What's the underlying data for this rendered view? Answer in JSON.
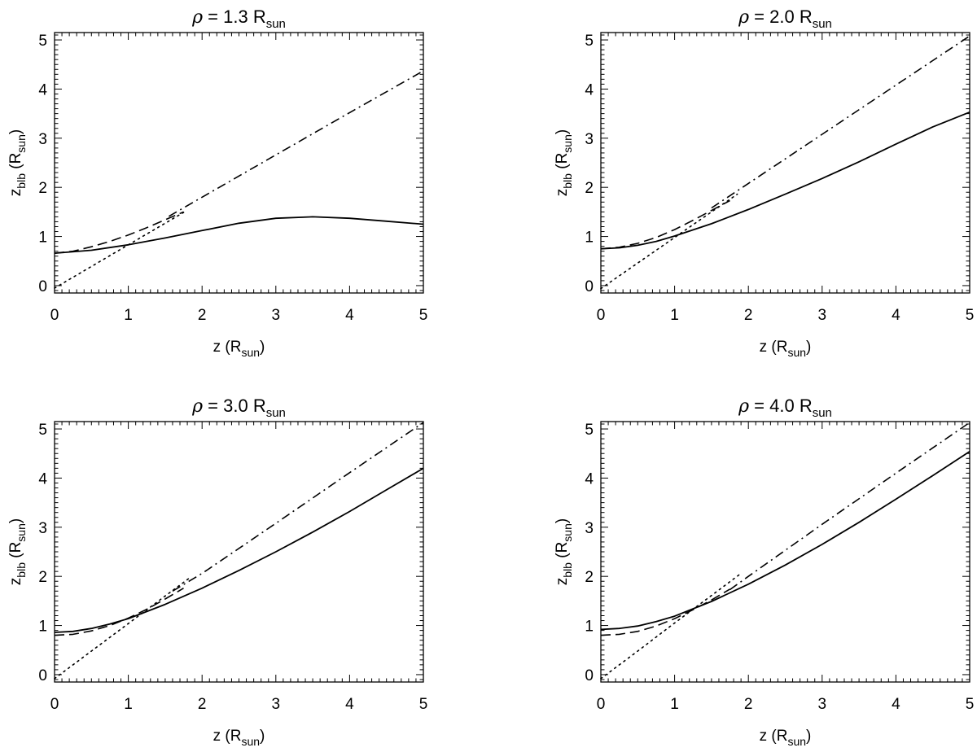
{
  "figure": {
    "background": "#ffffff",
    "ink": "#000000"
  },
  "legend": {
    "solid": "solid line",
    "dashed": "dashed line",
    "dotted": "dotted line",
    "dashdot": "dash-dot line"
  },
  "chart_data": [
    {
      "type": "line",
      "title": {
        "symbol": "ρ",
        "value": "= 1.3 R",
        "sub": "sun"
      },
      "xlabel": {
        "text": "z (R",
        "sub": "sun",
        "close": ")"
      },
      "ylabel": {
        "var": "z",
        "var_sub": "blb",
        "text": " (R",
        "sub": "sun",
        "close": ")"
      },
      "xlim": [
        0,
        5
      ],
      "ylim": [
        -0.15,
        5.15
      ],
      "xticks": [
        "0",
        "1",
        "2",
        "3",
        "4",
        "5"
      ],
      "yticks": [
        "0",
        "1",
        "2",
        "3",
        "4",
        "5"
      ],
      "grid": false,
      "series": [
        {
          "style": "solid",
          "x": [
            0,
            0.5,
            1,
            1.5,
            2,
            2.5,
            3,
            3.5,
            4,
            4.5,
            5
          ],
          "y": [
            0.66,
            0.72,
            0.83,
            0.97,
            1.12,
            1.27,
            1.37,
            1.4,
            1.37,
            1.31,
            1.25
          ]
        },
        {
          "style": "dashed",
          "x": [
            0,
            0.25,
            0.5,
            0.75,
            1,
            1.25,
            1.5,
            1.75
          ],
          "y": [
            0.66,
            0.7,
            0.79,
            0.9,
            1.03,
            1.18,
            1.34,
            1.5
          ]
        },
        {
          "style": "dotted",
          "x": [
            0,
            0.5,
            1,
            1.5,
            1.75
          ],
          "y": [
            -0.05,
            0.39,
            0.83,
            1.27,
            1.49
          ]
        },
        {
          "style": "dashdot",
          "x": [
            1.55,
            2,
            3,
            4,
            5
          ],
          "y": [
            1.41,
            1.8,
            2.66,
            3.52,
            4.37
          ]
        }
      ]
    },
    {
      "type": "line",
      "title": {
        "symbol": "ρ",
        "value": "= 2.0 R",
        "sub": "sun"
      },
      "xlabel": {
        "text": "z (R",
        "sub": "sun",
        "close": ")"
      },
      "ylabel": {
        "var": "z",
        "var_sub": "blb",
        "text": " (R",
        "sub": "sun",
        "close": ")"
      },
      "xlim": [
        0,
        5
      ],
      "ylim": [
        -0.15,
        5.15
      ],
      "xticks": [
        "0",
        "1",
        "2",
        "3",
        "4",
        "5"
      ],
      "yticks": [
        "0",
        "1",
        "2",
        "3",
        "4",
        "5"
      ],
      "grid": false,
      "series": [
        {
          "style": "solid",
          "x": [
            0,
            0.25,
            0.5,
            0.75,
            1,
            1.5,
            2,
            2.5,
            3,
            3.5,
            4,
            4.5,
            5
          ],
          "y": [
            0.75,
            0.77,
            0.82,
            0.9,
            1.01,
            1.26,
            1.55,
            1.86,
            2.18,
            2.52,
            2.88,
            3.23,
            3.53
          ]
        },
        {
          "style": "dashed",
          "x": [
            0,
            0.25,
            0.5,
            0.75,
            1,
            1.25,
            1.5,
            1.75
          ],
          "y": [
            0.75,
            0.78,
            0.86,
            0.98,
            1.14,
            1.33,
            1.53,
            1.73
          ]
        },
        {
          "style": "dotted",
          "x": [
            0,
            0.5,
            1,
            1.5,
            1.85
          ],
          "y": [
            -0.06,
            0.46,
            0.98,
            1.5,
            1.86
          ]
        },
        {
          "style": "dashdot",
          "x": [
            1.5,
            2,
            3,
            4,
            5
          ],
          "y": [
            1.58,
            2.08,
            3.08,
            4.08,
            5.08
          ]
        }
      ]
    },
    {
      "type": "line",
      "title": {
        "symbol": "ρ",
        "value": "= 3.0 R",
        "sub": "sun"
      },
      "xlabel": {
        "text": "z (R",
        "sub": "sun",
        "close": ")"
      },
      "ylabel": {
        "var": "z",
        "var_sub": "blb",
        "text": " (R",
        "sub": "sun",
        "close": ")"
      },
      "xlim": [
        0,
        5
      ],
      "ylim": [
        -0.15,
        5.15
      ],
      "xticks": [
        "0",
        "1",
        "2",
        "3",
        "4",
        "5"
      ],
      "yticks": [
        "0",
        "1",
        "2",
        "3",
        "4",
        "5"
      ],
      "grid": false,
      "series": [
        {
          "style": "solid",
          "x": [
            0,
            0.25,
            0.5,
            0.75,
            1,
            1.5,
            2,
            2.5,
            3,
            3.5,
            4,
            4.5,
            5
          ],
          "y": [
            0.86,
            0.88,
            0.94,
            1.03,
            1.14,
            1.43,
            1.76,
            2.12,
            2.5,
            2.9,
            3.32,
            3.76,
            4.2
          ]
        },
        {
          "style": "dashed",
          "x": [
            0,
            0.25,
            0.5,
            0.75,
            1,
            1.25,
            1.5,
            1.75
          ],
          "y": [
            0.8,
            0.82,
            0.89,
            1.0,
            1.15,
            1.33,
            1.54,
            1.76
          ]
        },
        {
          "style": "dotted",
          "x": [
            0,
            0.5,
            1,
            1.5,
            1.85
          ],
          "y": [
            -0.08,
            0.48,
            1.04,
            1.6,
            1.99
          ]
        },
        {
          "style": "dashdot",
          "x": [
            1.6,
            2,
            3,
            4,
            5
          ],
          "y": [
            1.7,
            2.06,
            3.08,
            4.11,
            5.13
          ]
        }
      ]
    },
    {
      "type": "line",
      "title": {
        "symbol": "ρ",
        "value": "= 4.0 R",
        "sub": "sun"
      },
      "xlabel": {
        "text": "z (R",
        "sub": "sun",
        "close": ")"
      },
      "ylabel": {
        "var": "z",
        "var_sub": "blb",
        "text": " (R",
        "sub": "sun",
        "close": ")"
      },
      "xlim": [
        0,
        5
      ],
      "ylim": [
        -0.15,
        5.15
      ],
      "xticks": [
        "0",
        "1",
        "2",
        "3",
        "4",
        "5"
      ],
      "yticks": [
        "0",
        "1",
        "2",
        "3",
        "4",
        "5"
      ],
      "grid": false,
      "series": [
        {
          "style": "solid",
          "x": [
            0,
            0.25,
            0.5,
            0.75,
            1,
            1.5,
            2,
            2.5,
            3,
            3.5,
            4,
            4.5,
            5
          ],
          "y": [
            0.92,
            0.94,
            0.99,
            1.08,
            1.19,
            1.49,
            1.84,
            2.23,
            2.65,
            3.1,
            3.57,
            4.05,
            4.54
          ]
        },
        {
          "style": "dashed",
          "x": [
            0,
            0.25,
            0.5,
            0.75,
            1,
            1.25,
            1.5,
            1.75
          ],
          "y": [
            0.8,
            0.82,
            0.88,
            0.99,
            1.14,
            1.32,
            1.52,
            1.74
          ]
        },
        {
          "style": "dotted",
          "x": [
            0,
            0.5,
            1,
            1.5,
            1.9
          ],
          "y": [
            -0.08,
            0.48,
            1.05,
            1.61,
            2.06
          ]
        },
        {
          "style": "dashdot",
          "x": [
            1.75,
            2,
            3,
            4,
            5
          ],
          "y": [
            1.73,
            2.0,
            3.06,
            4.1,
            5.13
          ]
        }
      ]
    }
  ]
}
